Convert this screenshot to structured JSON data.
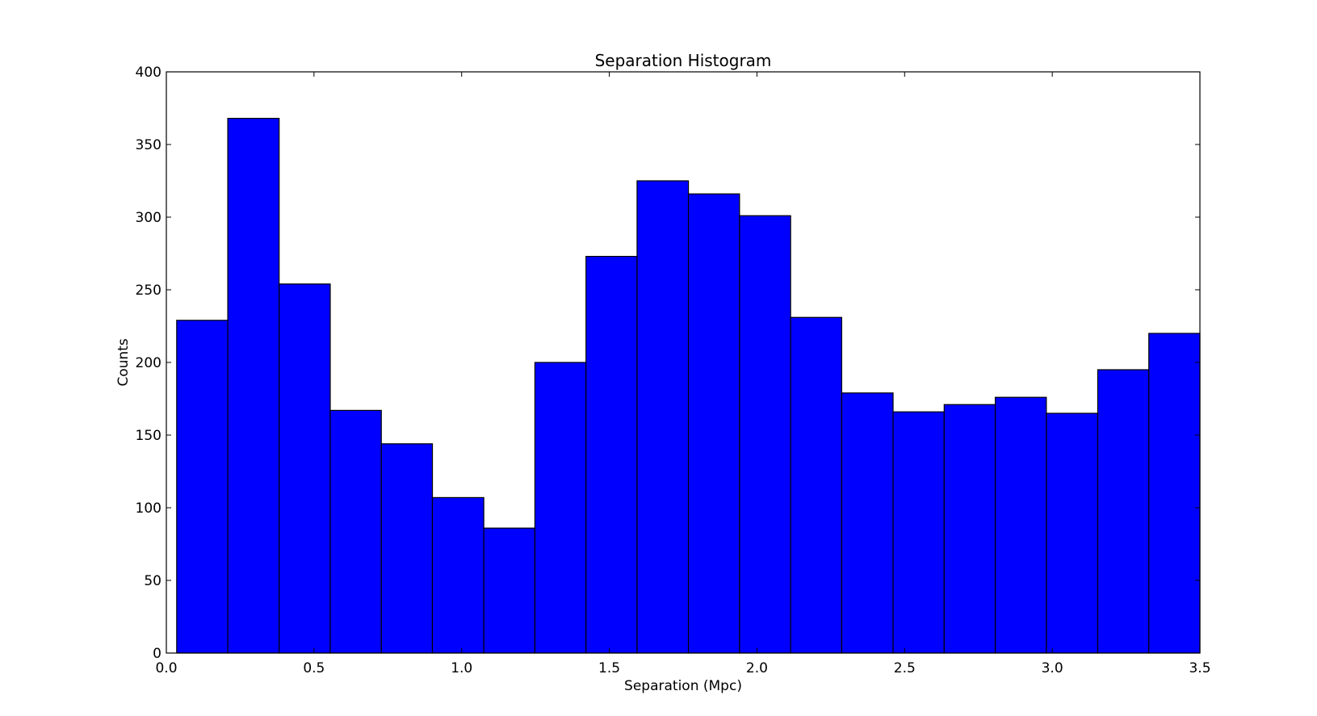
{
  "chart_data": {
    "type": "bar",
    "title": "Separation Histogram",
    "xlabel": "Separation (Mpc)",
    "ylabel": "Counts",
    "xlim": [
      0.0,
      3.5
    ],
    "ylim": [
      0,
      400
    ],
    "xticks": [
      "0.0",
      "0.5",
      "1.0",
      "1.5",
      "2.0",
      "2.5",
      "3.0",
      "3.5"
    ],
    "xtick_values": [
      0.0,
      0.5,
      1.0,
      1.5,
      2.0,
      2.5,
      3.0,
      3.5
    ],
    "yticks": [
      "0",
      "50",
      "100",
      "150",
      "200",
      "250",
      "300",
      "350",
      "400"
    ],
    "ytick_values": [
      0,
      50,
      100,
      150,
      200,
      250,
      300,
      350,
      400
    ],
    "bin_edges": [
      0.035,
      0.208,
      0.382,
      0.555,
      0.728,
      0.901,
      1.075,
      1.248,
      1.421,
      1.594,
      1.768,
      1.941,
      2.114,
      2.287,
      2.461,
      2.634,
      2.807,
      2.98,
      3.154,
      3.327,
      3.5
    ],
    "values": [
      229,
      368,
      254,
      167,
      144,
      107,
      86,
      200,
      273,
      325,
      316,
      301,
      231,
      179,
      166,
      171,
      176,
      165,
      195,
      220
    ],
    "grid": false,
    "legend": "none",
    "bar_color": "#0000ff",
    "edge_color": "#000000"
  }
}
